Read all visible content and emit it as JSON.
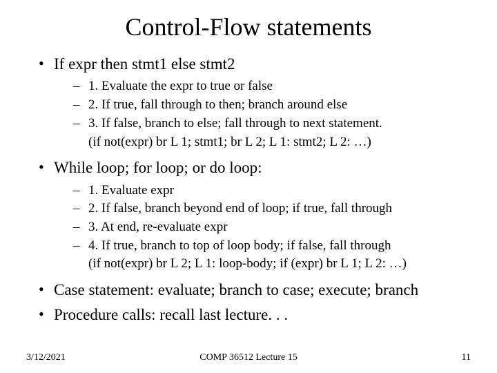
{
  "title": "Control-Flow statements",
  "bullets": [
    {
      "text": "If expr then stmt1 else stmt2",
      "sub": [
        {
          "dash": true,
          "text": "1. Evaluate the expr to true or false"
        },
        {
          "dash": true,
          "text": "2. If true, fall through to then; branch around else"
        },
        {
          "dash": true,
          "text": "3. If false, branch to else; fall through to next statement."
        },
        {
          "dash": false,
          "text": "(if not(expr) br L 1; stmt1; br L 2; L 1: stmt2; L 2: …)"
        }
      ]
    },
    {
      "text": "While loop; for loop; or do loop:",
      "sub": [
        {
          "dash": true,
          "text": "1. Evaluate expr"
        },
        {
          "dash": true,
          "text": "2. If false, branch beyond end of loop; if true, fall through"
        },
        {
          "dash": true,
          "text": "3. At end, re-evaluate expr"
        },
        {
          "dash": true,
          "text": "4. If true, branch to top of loop body; if false, fall through"
        },
        {
          "dash": false,
          "text": "(if not(expr) br L 2; L 1: loop-body; if (expr) br L 1; L 2: …)"
        }
      ]
    },
    {
      "text": "Case statement: evaluate; branch to case; execute; branch",
      "sub": []
    },
    {
      "text": "Procedure calls: recall last lecture. . .",
      "sub": []
    }
  ],
  "footer": {
    "date": "3/12/2021",
    "center": "COMP 36512 Lecture 15",
    "page": "11"
  },
  "style": {
    "background_color": "#ffffff",
    "text_color": "#000000",
    "title_fontsize": 36,
    "level1_fontsize": 23,
    "level2_fontsize": 19,
    "footer_fontsize": 14,
    "font_family": "Times New Roman"
  }
}
